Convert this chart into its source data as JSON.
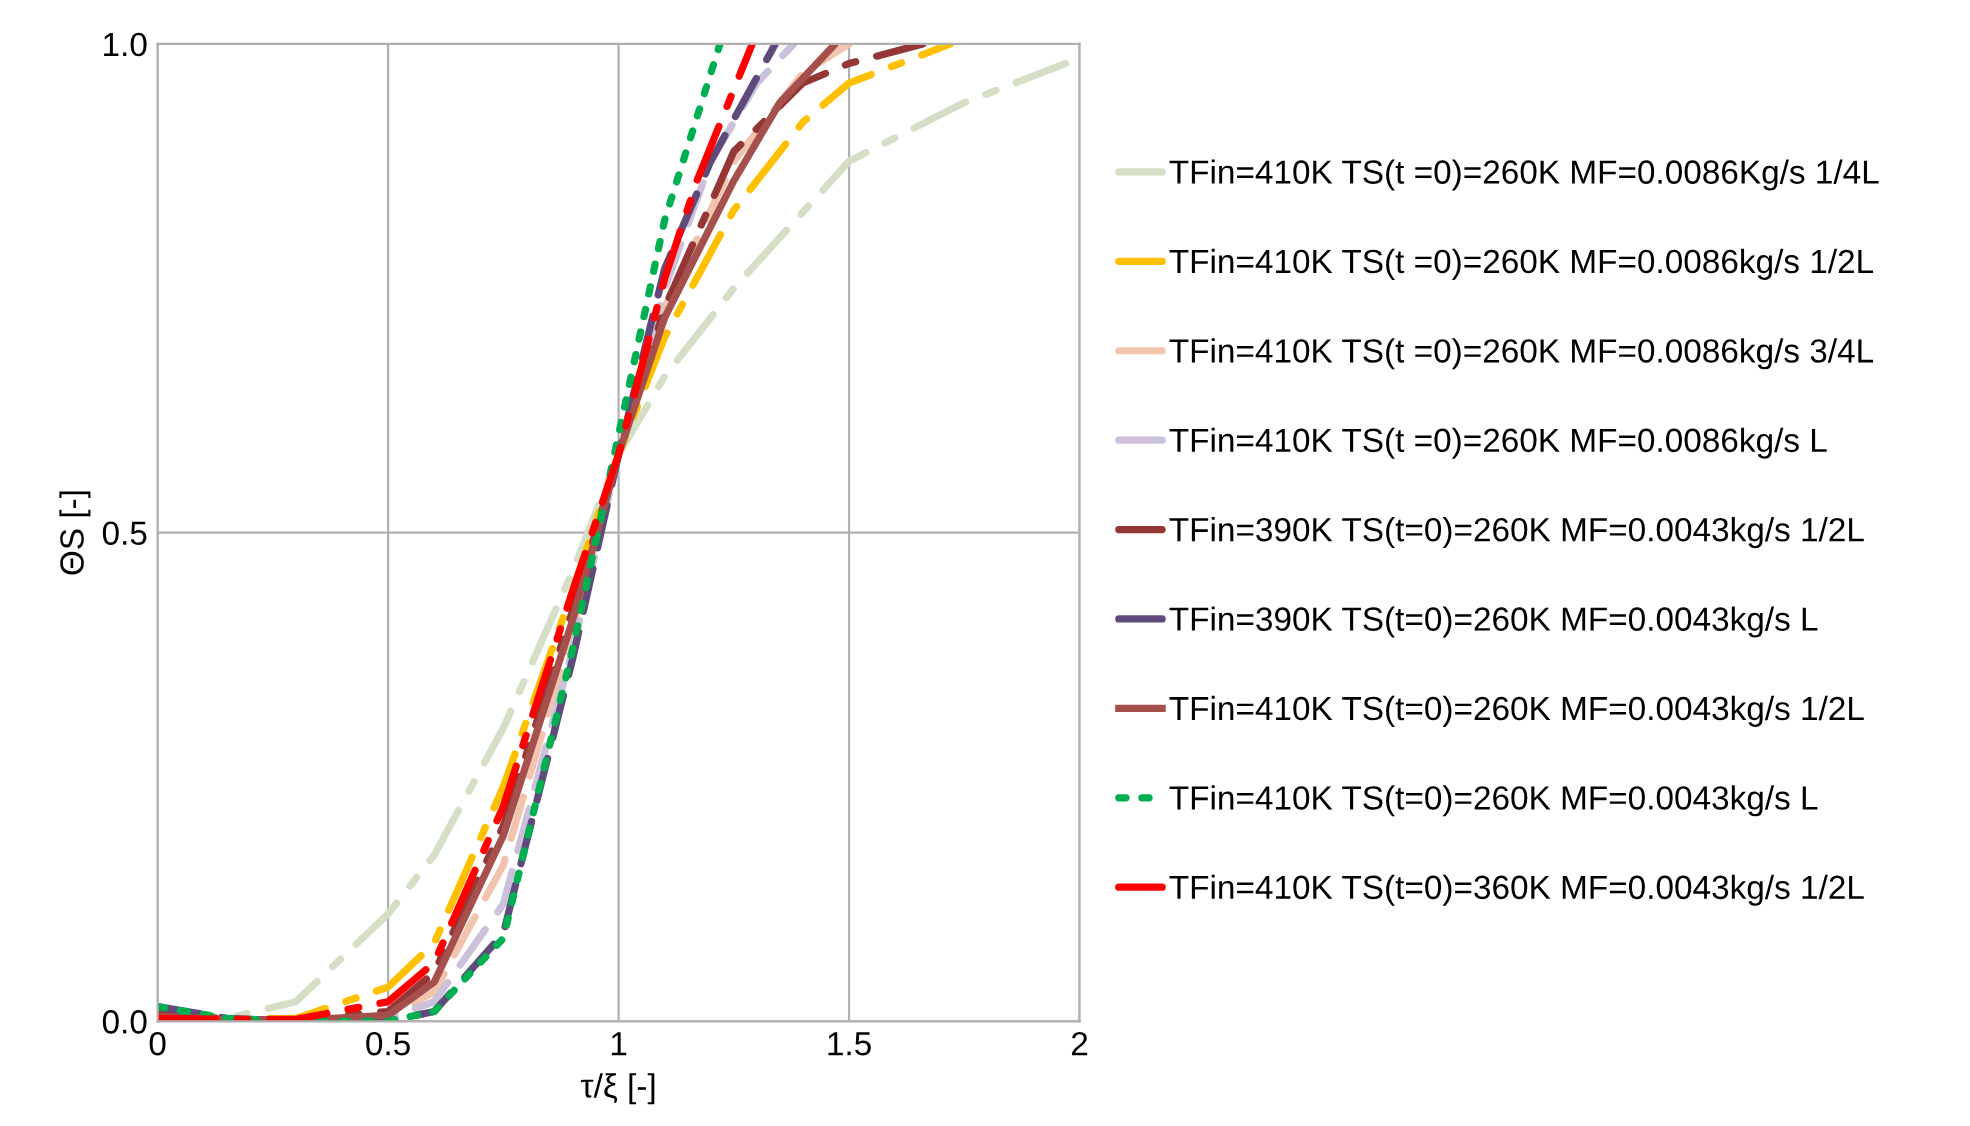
{
  "chart_data": {
    "type": "line",
    "xlabel": "τ/ξ [-]",
    "ylabel": "ΘS [-]",
    "xlim": [
      0,
      2
    ],
    "xticks": [
      0,
      {
        "value": 0.5,
        "label": "0.5"
      },
      1,
      {
        "value": 1.5,
        "label": "1.5"
      },
      2
    ],
    "ylim": [
      0,
      1
    ],
    "yticks": [
      {
        "value": 0,
        "label": "0.0"
      },
      {
        "value": 0.5,
        "label": "0.5"
      },
      {
        "value": 1,
        "label": "1.0"
      }
    ],
    "grid": true,
    "legend": "right",
    "marker": "none",
    "series": [
      {
        "name": "TFin=410K TS(t =0)=260K MF=0.0086Kg/s 1/4L",
        "color": "#d4dfc6",
        "line_style": "dashdot",
        "x": [
          0,
          0.15,
          0.3,
          0.5,
          0.6,
          0.75,
          0.9,
          1.0,
          1.1,
          1.25,
          1.5,
          1.75,
          1.97
        ],
        "values": [
          0.01,
          0.003,
          0.02,
          0.11,
          0.17,
          0.3,
          0.46,
          0.58,
          0.66,
          0.75,
          0.88,
          0.94,
          0.98
        ]
      },
      {
        "name": "TFin=410K TS(t =0)=260K MF=0.0086kg/s 1/2L",
        "color": "#ffc000",
        "line_style": "dashdot",
        "x": [
          0,
          0.15,
          0.3,
          0.5,
          0.6,
          0.75,
          0.9,
          1.0,
          1.1,
          1.25,
          1.4,
          1.5,
          1.72
        ],
        "values": [
          0.01,
          0.002,
          0.003,
          0.035,
          0.08,
          0.24,
          0.44,
          0.58,
          0.7,
          0.83,
          0.92,
          0.96,
          1.0
        ]
      },
      {
        "name": "TFin=410K TS(t =0)=260K MF=0.0086kg/s 3/4L",
        "color": "#f2c4ae",
        "line_style": "dashed",
        "x": [
          0,
          0.15,
          0.3,
          0.5,
          0.6,
          0.75,
          0.9,
          1.0,
          1.1,
          1.25,
          1.4,
          1.5
        ],
        "values": [
          0.01,
          0.002,
          0.001,
          0.006,
          0.03,
          0.16,
          0.4,
          0.58,
          0.73,
          0.88,
          0.97,
          1.0
        ]
      },
      {
        "name": "TFin=410K TS(t =0)=260K MF=0.0086kg/s L",
        "color": "#ccc1da",
        "line_style": "dashed",
        "x": [
          0,
          0.15,
          0.3,
          0.5,
          0.6,
          0.75,
          0.9,
          1.0,
          1.1,
          1.2,
          1.3,
          1.38
        ],
        "values": [
          0.01,
          0.002,
          0.001,
          0.003,
          0.02,
          0.12,
          0.38,
          0.58,
          0.75,
          0.88,
          0.96,
          1.0
        ]
      },
      {
        "name": "TFin=390K TS(t=0)=260K MF=0.0043kg/s 1/2L",
        "color": "#953735",
        "line_style": "dashdot",
        "x": [
          0,
          0.15,
          0.3,
          0.5,
          0.6,
          0.75,
          0.9,
          1.0,
          1.1,
          1.25,
          1.4,
          1.5,
          1.66
        ],
        "values": [
          0.01,
          0.002,
          0.001,
          0.01,
          0.05,
          0.2,
          0.42,
          0.58,
          0.73,
          0.89,
          0.96,
          0.98,
          1.0
        ]
      },
      {
        "name": "TFin=390K TS(t=0)=260K MF=0.0043kg/s L",
        "color": "#604a7b",
        "line_style": "dashed",
        "x": [
          0,
          0.15,
          0.3,
          0.5,
          0.6,
          0.75,
          0.9,
          1.0,
          1.1,
          1.2,
          1.34
        ],
        "values": [
          0.015,
          0.003,
          0.0,
          0.0,
          0.01,
          0.09,
          0.37,
          0.58,
          0.77,
          0.88,
          1.0
        ]
      },
      {
        "name": "TFin=410K TS(t=0)=260K MF=0.0043kg/s 1/2L",
        "color": "#a5504d",
        "line_style": "solid",
        "x": [
          0,
          0.15,
          0.3,
          0.5,
          0.6,
          0.75,
          0.9,
          1.0,
          1.1,
          1.25,
          1.35,
          1.47
        ],
        "values": [
          0.005,
          0.002,
          0.001,
          0.006,
          0.04,
          0.19,
          0.41,
          0.58,
          0.72,
          0.86,
          0.94,
          1.0
        ]
      },
      {
        "name": "TFin=410K TS(t=0)=260K MF=0.0043kg/s L",
        "color": "#00b050",
        "line_style": "dotted",
        "x": [
          0,
          0.15,
          0.3,
          0.5,
          0.6,
          0.75,
          0.9,
          1.0,
          1.1,
          1.2,
          1.22
        ],
        "values": [
          0.015,
          0.003,
          0.0,
          0.0,
          0.01,
          0.085,
          0.38,
          0.6,
          0.82,
          0.97,
          1.0
        ]
      },
      {
        "name": "TFin=410K TS(t=0)=360K MF=0.0043kg/s 1/2L",
        "color": "#ff0000",
        "line_style": "dashdot",
        "x": [
          0,
          0.15,
          0.3,
          0.5,
          0.6,
          0.75,
          0.9,
          1.0,
          1.1,
          1.17,
          1.29
        ],
        "values": [
          0.003,
          0.002,
          0.002,
          0.02,
          0.06,
          0.22,
          0.44,
          0.58,
          0.76,
          0.86,
          1.0
        ]
      }
    ]
  }
}
